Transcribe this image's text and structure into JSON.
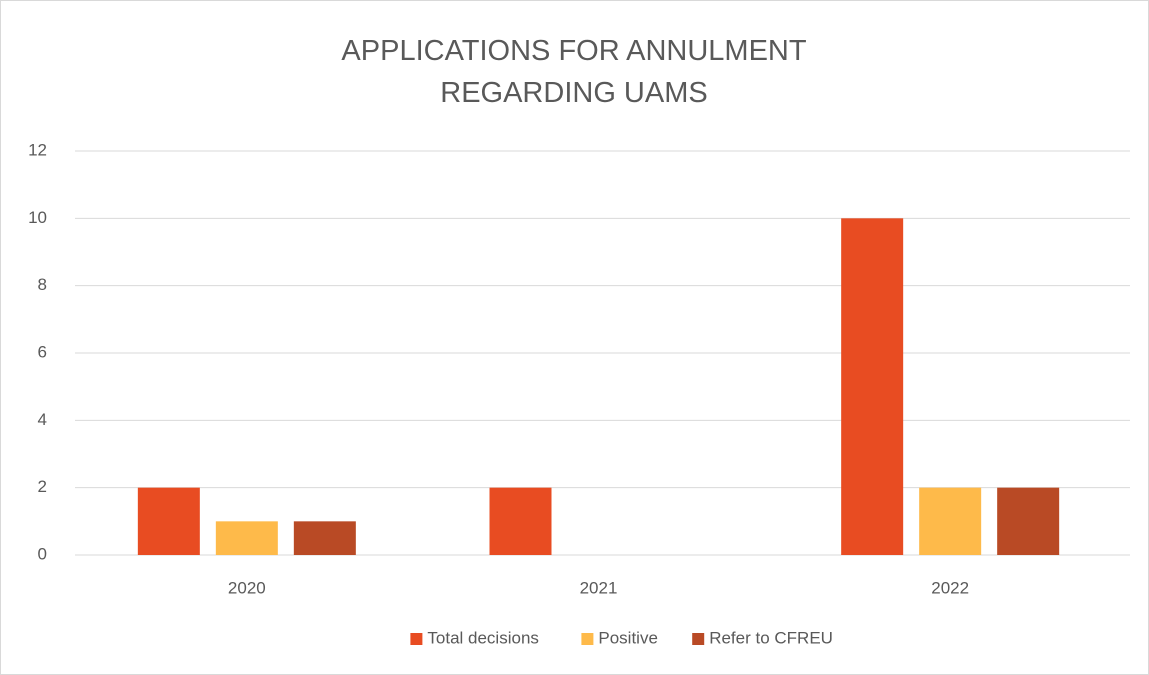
{
  "chart_data": {
    "type": "bar",
    "title": "APPLICATIONS FOR ANNULMENT REGARDING UAMS",
    "categories": [
      "2020",
      "2021",
      "2022"
    ],
    "series": [
      {
        "name": "Total decisions",
        "color": "#e84c22",
        "values": [
          2,
          2,
          10
        ]
      },
      {
        "name": "Positive",
        "color": "#feba4a",
        "values": [
          1,
          0,
          2
        ]
      },
      {
        "name": "Refer to CFREU",
        "color": "#b94a25",
        "values": [
          1,
          0,
          2
        ]
      }
    ],
    "ylim": [
      0,
      12
    ],
    "yticks": [
      0,
      2,
      4,
      6,
      8,
      10,
      12
    ],
    "grid": true,
    "legend": "bottom"
  }
}
